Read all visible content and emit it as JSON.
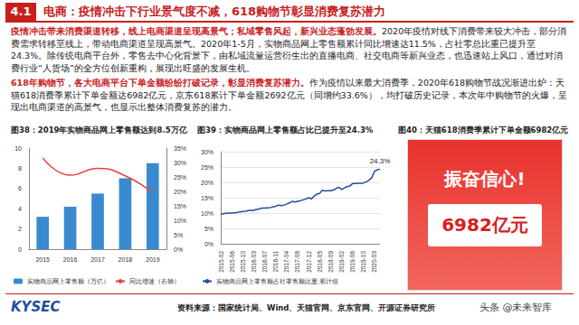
{
  "header": {
    "number": "4.1",
    "title": "电商：疫情冲击下行业景气度不减，618购物节彰显消费复苏潜力"
  },
  "paragraphs": [
    {
      "lead": "疫情冲击带来消费渠道转移，线上电商渠道呈现高景气；私域零售风起，新兴业态蓬勃发展。",
      "body": "2020年疫情对线下消费带来较大冲击，部分消费需求转移至线上，带动电商渠道呈现高景气。2020年1-5月，实物商品网上零售额累计同比增速达11.5%，占社零总比重已提升至24.3%。除传统电商平台外，零售去中心化背景下，由私域流量运营衍生出的直播电商、社交电商等新兴业态，也迅速站上风口，通过对消费行业“人货场”的全方位创新重构，展现出旺盛的发展生机。"
    },
    {
      "lead": "618年购物节，各大电商平台下单金额纷纷打破记录，彰显消费复苏潜力。",
      "body": "作为疫情以来最大消费季，2020年618购物节战况渐进出炉：天猫618消费季累计下单金额达6982亿元，京东618累计下单金额2692亿元（同增约33.6%），均打破历史记录，本次年中购物节的火爆，呈现出电商渠道的高景气，也显示出整体消费复苏的潜力。"
    }
  ],
  "figures": [
    {
      "title": "图38：2019年实物商品网上零售额达到8.5万亿"
    },
    {
      "title": "图39：实物商品网上零售额占比已提升至24.3%"
    },
    {
      "title": "图40：天猫618消费季累计下单金额6982亿元"
    }
  ],
  "poster": {
    "headline": "振奋信心!",
    "amount": "6982亿元"
  },
  "footer": {
    "logo": "KYSEC",
    "source": "资料来源：国家统计局、Wind、天猫官网、京东官网、开源证券研究所",
    "watermark": "头条 @未来智库"
  },
  "chart_data": [
    {
      "type": "bar",
      "categories": [
        "2015",
        "2016",
        "2017",
        "2018",
        "2019"
      ],
      "series": [
        {
          "name": "实物商品网上零售额（万亿）",
          "type": "bar",
          "color": "#3a8ad0",
          "values": [
            3.2,
            4.2,
            5.5,
            7.0,
            8.5
          ]
        },
        {
          "name": "同比增速（右轴）",
          "type": "line",
          "axis": "y2",
          "color": "#e8413b",
          "line_style": "solid",
          "values": [
            31.6,
            25.6,
            28.0,
            25.4,
            19.5
          ]
        }
      ],
      "ylim": [
        0,
        10
      ],
      "yticks": [
        0,
        2,
        4,
        6,
        8,
        10
      ],
      "y2lim": [
        0,
        35
      ],
      "y2ticks": [
        {
          "value": 0,
          "label": "0%"
        },
        {
          "value": 5,
          "label": "5%"
        },
        {
          "value": 10,
          "label": "10%"
        },
        {
          "value": 15,
          "label": "15%"
        },
        {
          "value": 20,
          "label": "20%"
        },
        {
          "value": 25,
          "label": "25%"
        },
        {
          "value": 30,
          "label": "30%"
        },
        {
          "value": 35,
          "label": "35%"
        }
      ],
      "grid": false,
      "legend": "bottom"
    },
    {
      "type": "line",
      "categories": [
        "2015-02",
        null,
        null,
        null,
        "2015-06",
        null,
        null,
        null,
        "2015-10",
        null,
        null,
        null,
        "2016-03",
        null,
        null,
        null,
        "2016-07",
        null,
        null,
        null,
        "2016-11",
        null,
        null,
        null,
        "2017-04",
        null,
        null,
        null,
        "2017-08",
        null,
        null,
        null,
        "2017-12",
        null,
        null,
        null,
        "2018-05",
        null,
        null,
        null,
        "2018-09",
        null,
        null,
        null,
        "2019-02",
        null,
        null,
        null,
        "2019-06",
        null,
        null,
        null,
        "2019-10",
        null,
        null,
        null,
        "2020-03",
        null,
        null
      ],
      "series": [
        {
          "name": "实物商品网上零售额占社零售额比重:累计值",
          "color": "#1f4e9c",
          "line_style": "solid",
          "values": [
            9.6,
            9.8,
            9.9,
            10.0,
            10.0,
            10.1,
            10.2,
            10.4,
            10.5,
            10.6,
            10.8,
            10.9,
            10.9,
            11.2,
            11.3,
            11.6,
            11.6,
            11.7,
            11.8,
            12.0,
            12.2,
            12.6,
            12.4,
            12.6,
            12.9,
            13.3,
            13.8,
            13.6,
            13.8,
            14.0,
            14.3,
            14.6,
            15.0,
            14.6,
            15.5,
            16.2,
            16.4,
            17.4,
            17.2,
            17.3,
            17.3,
            17.5,
            18.0,
            18.4,
            17.7,
            18.2,
            18.6,
            18.8,
            19.6,
            19.6,
            19.7,
            19.7,
            19.8,
            20.2,
            20.7,
            21.5,
            23.6,
            24.1,
            24.3
          ]
        }
      ],
      "annotations": [
        {
          "text": "24.3%",
          "value": 24.3
        }
      ],
      "ylim": [
        0,
        30
      ],
      "yticks": [
        {
          "value": 0,
          "label": "0%"
        },
        {
          "value": 5,
          "label": "5%"
        },
        {
          "value": 10,
          "label": "10%"
        },
        {
          "value": 15,
          "label": "15%"
        },
        {
          "value": 20,
          "label": "20%"
        },
        {
          "value": 25,
          "label": "25%"
        },
        {
          "value": 30,
          "label": "30%"
        }
      ],
      "grid": true,
      "legend": "bottom"
    }
  ]
}
